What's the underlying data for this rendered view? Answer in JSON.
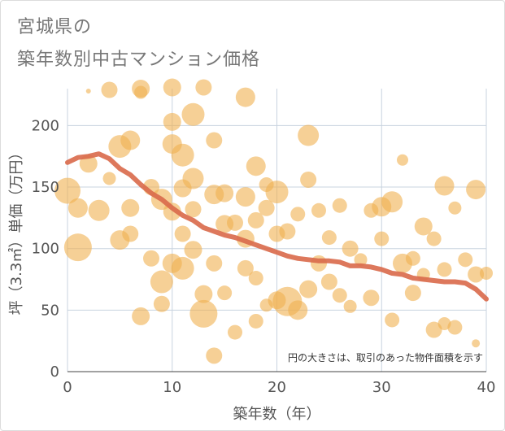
{
  "title": {
    "line1": "宮城県の",
    "line2": "築年数別中古マンション価格"
  },
  "colors": {
    "bubble": "#F0B050",
    "trend": "#D9694A",
    "grid": "#c8d3df"
  },
  "chart_data": {
    "type": "scatter",
    "xlabel": "築年数（年）",
    "ylabel": "坪（3.3㎡）単価（万円）",
    "annotation": "円の大きさは、取引のあった物件面積を示す",
    "xlim": [
      0,
      40
    ],
    "ylim": [
      0,
      230
    ],
    "xticks": [
      "0",
      "10",
      "20",
      "30",
      "40"
    ],
    "yticks": [
      "0",
      "50",
      "100",
      "150",
      "200"
    ],
    "grid": true,
    "legend": "none",
    "bubbles": [
      {
        "x": 0,
        "y": 147,
        "s": 16
      },
      {
        "x": 1,
        "y": 101,
        "s": 17
      },
      {
        "x": 1,
        "y": 133,
        "s": 12
      },
      {
        "x": 2,
        "y": 169,
        "s": 11
      },
      {
        "x": 2,
        "y": 228,
        "s": 3
      },
      {
        "x": 3,
        "y": 131,
        "s": 13
      },
      {
        "x": 4,
        "y": 229,
        "s": 10
      },
      {
        "x": 5,
        "y": 183,
        "s": 14
      },
      {
        "x": 5,
        "y": 107,
        "s": 12
      },
      {
        "x": 6,
        "y": 188,
        "s": 12
      },
      {
        "x": 6,
        "y": 133,
        "s": 11
      },
      {
        "x": 6,
        "y": 112,
        "s": 10
      },
      {
        "x": 7,
        "y": 230,
        "s": 11
      },
      {
        "x": 7,
        "y": 227,
        "s": 8
      },
      {
        "x": 7,
        "y": 45,
        "s": 11
      },
      {
        "x": 8,
        "y": 150,
        "s": 10
      },
      {
        "x": 8,
        "y": 92,
        "s": 10
      },
      {
        "x": 9,
        "y": 140,
        "s": 13
      },
      {
        "x": 9,
        "y": 73,
        "s": 14
      },
      {
        "x": 9,
        "y": 55,
        "s": 10
      },
      {
        "x": 10,
        "y": 231,
        "s": 11
      },
      {
        "x": 10,
        "y": 203,
        "s": 11
      },
      {
        "x": 10,
        "y": 185,
        "s": 12
      },
      {
        "x": 10,
        "y": 130,
        "s": 11
      },
      {
        "x": 10,
        "y": 88,
        "s": 12
      },
      {
        "x": 11,
        "y": 176,
        "s": 14
      },
      {
        "x": 11,
        "y": 149,
        "s": 11
      },
      {
        "x": 11,
        "y": 112,
        "s": 10
      },
      {
        "x": 11,
        "y": 84,
        "s": 14
      },
      {
        "x": 12,
        "y": 209,
        "s": 14
      },
      {
        "x": 12,
        "y": 157,
        "s": 13
      },
      {
        "x": 12,
        "y": 132,
        "s": 10
      },
      {
        "x": 12,
        "y": 99,
        "s": 11
      },
      {
        "x": 13,
        "y": 231,
        "s": 10
      },
      {
        "x": 13,
        "y": 47,
        "s": 17
      },
      {
        "x": 14,
        "y": 188,
        "s": 10
      },
      {
        "x": 14,
        "y": 144,
        "s": 12
      },
      {
        "x": 14,
        "y": 88,
        "s": 10
      },
      {
        "x": 14,
        "y": 13,
        "s": 10
      },
      {
        "x": 15,
        "y": 145,
        "s": 11
      },
      {
        "x": 15,
        "y": 120,
        "s": 11
      },
      {
        "x": 15,
        "y": 64,
        "s": 9
      },
      {
        "x": 16,
        "y": 121,
        "s": 10
      },
      {
        "x": 16,
        "y": 32,
        "s": 9
      },
      {
        "x": 17,
        "y": 223,
        "s": 12
      },
      {
        "x": 17,
        "y": 142,
        "s": 12
      },
      {
        "x": 17,
        "y": 108,
        "s": 11
      },
      {
        "x": 17,
        "y": 84,
        "s": 10
      },
      {
        "x": 18,
        "y": 167,
        "s": 12
      },
      {
        "x": 18,
        "y": 123,
        "s": 10
      },
      {
        "x": 18,
        "y": 76,
        "s": 9
      },
      {
        "x": 18,
        "y": 41,
        "s": 9
      },
      {
        "x": 19,
        "y": 152,
        "s": 9
      },
      {
        "x": 19,
        "y": 133,
        "s": 10
      },
      {
        "x": 19,
        "y": 54,
        "s": 8
      },
      {
        "x": 20,
        "y": 146,
        "s": 14
      },
      {
        "x": 20,
        "y": 112,
        "s": 10
      },
      {
        "x": 20,
        "y": 58,
        "s": 11
      },
      {
        "x": 21,
        "y": 57,
        "s": 18
      },
      {
        "x": 21,
        "y": 114,
        "s": 10
      },
      {
        "x": 22,
        "y": 128,
        "s": 9
      },
      {
        "x": 22,
        "y": 50,
        "s": 12
      },
      {
        "x": 23,
        "y": 192,
        "s": 13
      },
      {
        "x": 23,
        "y": 156,
        "s": 10
      },
      {
        "x": 23,
        "y": 67,
        "s": 11
      },
      {
        "x": 24,
        "y": 131,
        "s": 9
      },
      {
        "x": 24,
        "y": 88,
        "s": 10
      },
      {
        "x": 25,
        "y": 109,
        "s": 9
      },
      {
        "x": 25,
        "y": 73,
        "s": 10
      },
      {
        "x": 26,
        "y": 135,
        "s": 9
      },
      {
        "x": 26,
        "y": 62,
        "s": 9
      },
      {
        "x": 27,
        "y": 100,
        "s": 10
      },
      {
        "x": 27,
        "y": 53,
        "s": 8
      },
      {
        "x": 28,
        "y": 91,
        "s": 8
      },
      {
        "x": 29,
        "y": 131,
        "s": 9
      },
      {
        "x": 29,
        "y": 60,
        "s": 10
      },
      {
        "x": 30,
        "y": 134,
        "s": 12
      },
      {
        "x": 30,
        "y": 108,
        "s": 9
      },
      {
        "x": 31,
        "y": 138,
        "s": 13
      },
      {
        "x": 31,
        "y": 42,
        "s": 9
      },
      {
        "x": 32,
        "y": 172,
        "s": 7
      },
      {
        "x": 32,
        "y": 88,
        "s": 12
      },
      {
        "x": 33,
        "y": 92,
        "s": 9
      },
      {
        "x": 33,
        "y": 64,
        "s": 10
      },
      {
        "x": 34,
        "y": 118,
        "s": 11
      },
      {
        "x": 34,
        "y": 79,
        "s": 8
      },
      {
        "x": 35,
        "y": 108,
        "s": 9
      },
      {
        "x": 35,
        "y": 34,
        "s": 10
      },
      {
        "x": 36,
        "y": 151,
        "s": 12
      },
      {
        "x": 36,
        "y": 83,
        "s": 9
      },
      {
        "x": 36,
        "y": 39,
        "s": 8
      },
      {
        "x": 37,
        "y": 133,
        "s": 8
      },
      {
        "x": 37,
        "y": 36,
        "s": 9
      },
      {
        "x": 38,
        "y": 91,
        "s": 9
      },
      {
        "x": 39,
        "y": 148,
        "s": 12
      },
      {
        "x": 39,
        "y": 79,
        "s": 10
      },
      {
        "x": 40,
        "y": 80,
        "s": 8
      },
      {
        "x": 39,
        "y": 23,
        "s": 5
      },
      {
        "x": 13,
        "y": 63,
        "s": 11
      },
      {
        "x": 4,
        "y": 157,
        "s": 8
      }
    ],
    "trend_line": {
      "x": [
        0,
        1,
        2,
        3,
        4,
        5,
        6,
        7,
        8,
        9,
        10,
        11,
        12,
        13,
        14,
        15,
        16,
        17,
        18,
        19,
        20,
        21,
        22,
        23,
        24,
        25,
        26,
        27,
        28,
        29,
        30,
        31,
        32,
        33,
        34,
        35,
        36,
        37,
        38,
        39,
        40
      ],
      "y": [
        170,
        174,
        175,
        177,
        173,
        165,
        160,
        152,
        145,
        140,
        133,
        127,
        123,
        117,
        114,
        111,
        109,
        106,
        103,
        100,
        97,
        94,
        92,
        91,
        90,
        90,
        89,
        86,
        86,
        85,
        83,
        80,
        79,
        76,
        75,
        74,
        73,
        73,
        72,
        67,
        59
      ]
    }
  }
}
